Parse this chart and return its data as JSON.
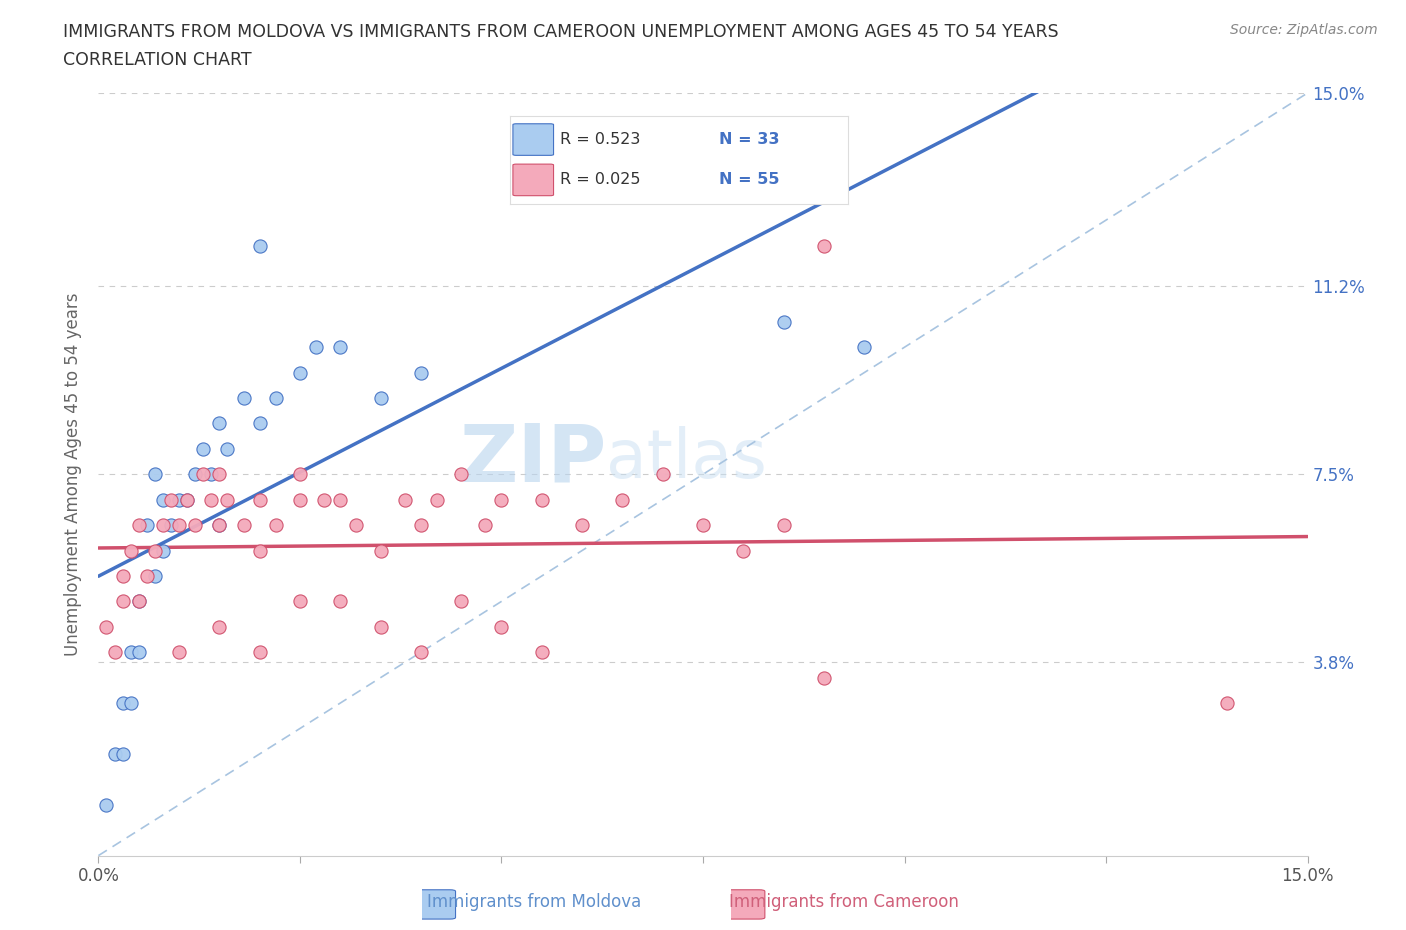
{
  "title_line1": "IMMIGRANTS FROM MOLDOVA VS IMMIGRANTS FROM CAMEROON UNEMPLOYMENT AMONG AGES 45 TO 54 YEARS",
  "title_line2": "CORRELATION CHART",
  "source_text": "Source: ZipAtlas.com",
  "xlabel_moldova": "Immigrants from Moldova",
  "xlabel_cameroon": "Immigrants from Cameroon",
  "ylabel": "Unemployment Among Ages 45 to 54 years",
  "xlim": [
    0.0,
    0.15
  ],
  "ylim": [
    0.0,
    0.15
  ],
  "yticks": [
    0.038,
    0.075,
    0.112,
    0.15
  ],
  "ytick_labels": [
    "3.8%",
    "7.5%",
    "11.2%",
    "15.0%"
  ],
  "xtick_positions": [
    0.0,
    0.025,
    0.05,
    0.075,
    0.1,
    0.125,
    0.15
  ],
  "moldova_color": "#aaccf0",
  "moldova_edge_color": "#4472c4",
  "cameroon_color": "#f4aabb",
  "cameroon_edge_color": "#d0506c",
  "moldova_line_color": "#4472c4",
  "cameroon_line_color": "#d0506c",
  "diag_line_color": "#a8c4e0",
  "legend_R_moldova": "R = 0.523",
  "legend_N_moldova": "N = 33",
  "legend_R_cameroon": "R = 0.025",
  "legend_N_cameroon": "N = 55",
  "title_color": "#333333",
  "right_axis_color": "#4472c4",
  "watermark_zip": "ZIP",
  "watermark_atlas": "atlas",
  "moldova_x": [
    0.001,
    0.002,
    0.003,
    0.003,
    0.004,
    0.004,
    0.005,
    0.005,
    0.006,
    0.007,
    0.008,
    0.008,
    0.009,
    0.01,
    0.011,
    0.012,
    0.013,
    0.014,
    0.015,
    0.016,
    0.018,
    0.02,
    0.022,
    0.025,
    0.027,
    0.03,
    0.035,
    0.04,
    0.02,
    0.085,
    0.095,
    0.015,
    0.007
  ],
  "moldova_y": [
    0.01,
    0.02,
    0.02,
    0.03,
    0.03,
    0.04,
    0.04,
    0.05,
    0.065,
    0.055,
    0.06,
    0.07,
    0.065,
    0.07,
    0.07,
    0.075,
    0.08,
    0.075,
    0.085,
    0.08,
    0.09,
    0.085,
    0.09,
    0.095,
    0.1,
    0.1,
    0.09,
    0.095,
    0.12,
    0.105,
    0.1,
    0.065,
    0.075
  ],
  "cameroon_x": [
    0.001,
    0.002,
    0.003,
    0.003,
    0.004,
    0.005,
    0.005,
    0.006,
    0.007,
    0.008,
    0.009,
    0.01,
    0.011,
    0.012,
    0.013,
    0.014,
    0.015,
    0.015,
    0.016,
    0.018,
    0.02,
    0.02,
    0.022,
    0.025,
    0.025,
    0.028,
    0.03,
    0.032,
    0.035,
    0.038,
    0.04,
    0.042,
    0.045,
    0.048,
    0.05,
    0.055,
    0.06,
    0.065,
    0.07,
    0.075,
    0.08,
    0.085,
    0.09,
    0.01,
    0.015,
    0.02,
    0.025,
    0.03,
    0.035,
    0.04,
    0.045,
    0.05,
    0.055,
    0.09,
    0.14
  ],
  "cameroon_y": [
    0.045,
    0.04,
    0.05,
    0.055,
    0.06,
    0.05,
    0.065,
    0.055,
    0.06,
    0.065,
    0.07,
    0.065,
    0.07,
    0.065,
    0.075,
    0.07,
    0.075,
    0.065,
    0.07,
    0.065,
    0.06,
    0.07,
    0.065,
    0.07,
    0.075,
    0.07,
    0.07,
    0.065,
    0.06,
    0.07,
    0.065,
    0.07,
    0.075,
    0.065,
    0.07,
    0.07,
    0.065,
    0.07,
    0.075,
    0.065,
    0.06,
    0.065,
    0.12,
    0.04,
    0.045,
    0.04,
    0.05,
    0.05,
    0.045,
    0.04,
    0.05,
    0.045,
    0.04,
    0.035,
    0.03
  ]
}
